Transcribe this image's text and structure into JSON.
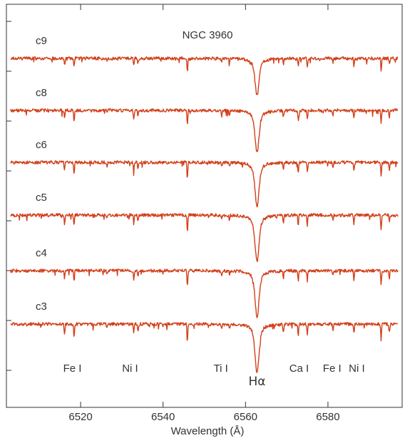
{
  "chart_data": {
    "type": "line",
    "title": "NGC 3960",
    "xlabel": "Wavelength (Å)",
    "ylabel": "",
    "xlim": [
      6502,
      6598
    ],
    "x_ticks": [
      6520,
      6540,
      6560,
      6580
    ],
    "grid": false,
    "line_color": "#d2401a",
    "series": [
      {
        "name": "c9"
      },
      {
        "name": "c8"
      },
      {
        "name": "c6"
      },
      {
        "name": "c5"
      },
      {
        "name": "c4"
      },
      {
        "name": "c3"
      }
    ],
    "absorption_lines": [
      {
        "wavelength": 6516.1,
        "depth": 0.35
      },
      {
        "wavelength": 6518.4,
        "depth": 0.45
      },
      {
        "wavelength": 6526.4,
        "depth": 0.15
      },
      {
        "wavelength": 6532.9,
        "depth": 0.35
      },
      {
        "wavelength": 6533.9,
        "depth": 0.25
      },
      {
        "wavelength": 6545.9,
        "depth": 0.65
      },
      {
        "wavelength": 6554.2,
        "depth": 0.2
      },
      {
        "wavelength": 6556.1,
        "depth": 0.2
      },
      {
        "wavelength": 6562.8,
        "depth": 1.0
      },
      {
        "wavelength": 6569.2,
        "depth": 0.3
      },
      {
        "wavelength": 6572.8,
        "depth": 0.4
      },
      {
        "wavelength": 6575.0,
        "depth": 0.4
      },
      {
        "wavelength": 6581.2,
        "depth": 0.2
      },
      {
        "wavelength": 6586.3,
        "depth": 0.35
      },
      {
        "wavelength": 6592.9,
        "depth": 0.6
      },
      {
        "wavelength": 6594.9,
        "depth": 0.3
      }
    ],
    "annotations": [
      {
        "text": "Fe I",
        "x": 6518
      },
      {
        "text": "Ni I",
        "x": 6532
      },
      {
        "text": "Ti I",
        "x": 6554
      },
      {
        "text": "Hα",
        "x": 6562.8
      },
      {
        "text": "Ca I",
        "x": 6573
      },
      {
        "text": "Fe I",
        "x": 6581
      },
      {
        "text": "Ni I",
        "x": 6587
      }
    ]
  }
}
